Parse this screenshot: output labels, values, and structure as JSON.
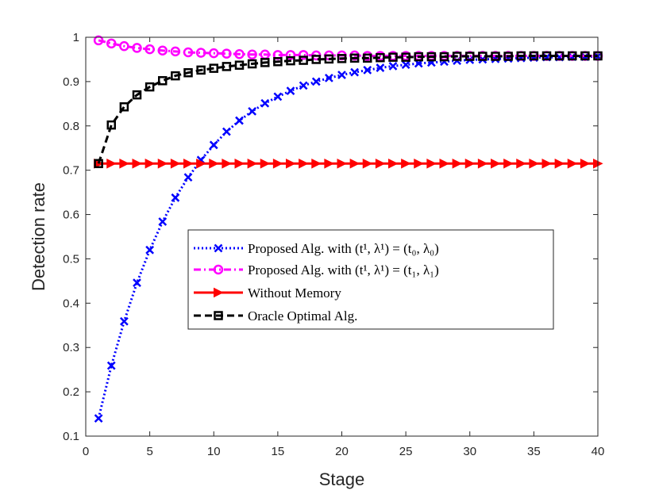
{
  "chart_data": {
    "type": "line",
    "xlabel": "Stage",
    "ylabel": "Detection rate",
    "xlim": [
      0,
      40
    ],
    "ylim": [
      0.1,
      1
    ],
    "xticks": [
      0,
      5,
      10,
      15,
      20,
      25,
      30,
      35,
      40
    ],
    "yticks": [
      0.1,
      0.2,
      0.3,
      0.4,
      0.5,
      0.6,
      0.7,
      0.8,
      0.9,
      1
    ],
    "ytick_labels": [
      "0.1",
      "0.2",
      "0.3",
      "0.4",
      "0.5",
      "0.6",
      "0.7",
      "0.8",
      "0.9",
      "1"
    ],
    "grid": false,
    "legend_position": "center-right",
    "x": [
      1,
      2,
      3,
      4,
      5,
      6,
      7,
      8,
      9,
      10,
      11,
      12,
      13,
      14,
      15,
      16,
      17,
      18,
      19,
      20,
      21,
      22,
      23,
      24,
      25,
      26,
      27,
      28,
      29,
      30,
      31,
      32,
      33,
      34,
      35,
      36,
      37,
      38,
      39,
      40
    ],
    "series": [
      {
        "name": "Proposed Alg. with (t¹, λ¹) = (t₀, λ₀)",
        "color": "#0000ff",
        "line_style": "dotted",
        "marker": "x",
        "values": [
          0.14,
          0.259,
          0.359,
          0.446,
          0.52,
          0.584,
          0.638,
          0.684,
          0.723,
          0.757,
          0.787,
          0.812,
          0.833,
          0.851,
          0.866,
          0.879,
          0.891,
          0.9,
          0.908,
          0.915,
          0.921,
          0.926,
          0.931,
          0.935,
          0.938,
          0.941,
          0.943,
          0.945,
          0.947,
          0.949,
          0.95,
          0.951,
          0.952,
          0.953,
          0.954,
          0.955,
          0.955,
          0.956,
          0.956,
          0.957
        ]
      },
      {
        "name": "Proposed Alg. with (t¹, λ¹) = (t₁, λ₁)",
        "color": "#ff00ff",
        "line_style": "dashdot",
        "marker": "circle",
        "values": [
          0.993,
          0.986,
          0.98,
          0.976,
          0.973,
          0.97,
          0.968,
          0.966,
          0.965,
          0.964,
          0.963,
          0.962,
          0.961,
          0.961,
          0.96,
          0.96,
          0.96,
          0.959,
          0.959,
          0.959,
          0.959,
          0.958,
          0.958,
          0.958,
          0.958,
          0.958,
          0.958,
          0.958,
          0.958,
          0.958,
          0.958,
          0.958,
          0.958,
          0.958,
          0.958,
          0.958,
          0.958,
          0.958,
          0.958,
          0.958
        ]
      },
      {
        "name": "Without Memory",
        "color": "#ff0000",
        "line_style": "solid",
        "marker": "triangle-right",
        "values": [
          0.715,
          0.715,
          0.715,
          0.715,
          0.715,
          0.715,
          0.715,
          0.715,
          0.715,
          0.715,
          0.715,
          0.715,
          0.715,
          0.715,
          0.715,
          0.715,
          0.715,
          0.715,
          0.715,
          0.715,
          0.715,
          0.715,
          0.715,
          0.715,
          0.715,
          0.715,
          0.715,
          0.715,
          0.715,
          0.715,
          0.715,
          0.715,
          0.715,
          0.715,
          0.715,
          0.715,
          0.715,
          0.715,
          0.715,
          0.715
        ]
      },
      {
        "name": "Oracle Optimal Alg.",
        "color": "#000000",
        "line_style": "dashed",
        "marker": "square",
        "values": [
          0.715,
          0.802,
          0.843,
          0.87,
          0.888,
          0.902,
          0.913,
          0.92,
          0.926,
          0.93,
          0.934,
          0.937,
          0.94,
          0.943,
          0.945,
          0.947,
          0.948,
          0.95,
          0.951,
          0.952,
          0.953,
          0.953,
          0.954,
          0.955,
          0.955,
          0.956,
          0.956,
          0.956,
          0.957,
          0.957,
          0.957,
          0.957,
          0.957,
          0.958,
          0.958,
          0.958,
          0.958,
          0.958,
          0.958,
          0.958
        ]
      }
    ]
  }
}
